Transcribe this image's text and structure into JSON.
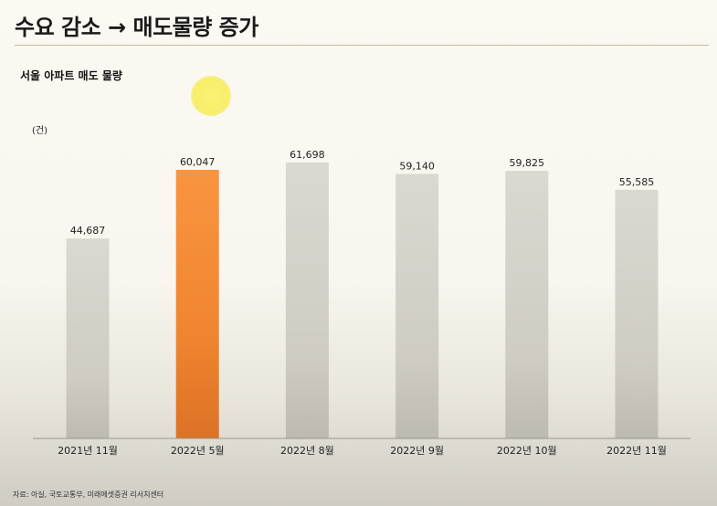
{
  "header": {
    "title": "수요 감소 → 매도물량 증가"
  },
  "chart_data": {
    "type": "bar",
    "title": "서울 아파트 매도 물량",
    "unit": "(건)",
    "categories": [
      "2021년 11월",
      "2022년 5월",
      "2022년 8월",
      "2022년 9월",
      "2022년 10월",
      "2022년 11월"
    ],
    "values": [
      44687,
      60047,
      61698,
      59140,
      59825,
      55585
    ],
    "value_labels": [
      "44,687",
      "60,047",
      "61,698",
      "59,140",
      "59,825",
      "55,585"
    ],
    "highlight_index": 1,
    "ylim": [
      0,
      70000
    ],
    "grid": false,
    "colors": {
      "bar": "#d8d6ce",
      "highlight": "#f7913a",
      "highlight_dark": "#e07624"
    }
  },
  "footer": {
    "source": "자료: 아실, 국토교통부, 미래에셋증권 리서치센터"
  }
}
